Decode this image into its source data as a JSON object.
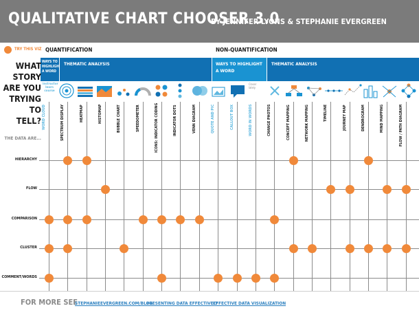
{
  "header": {
    "title": "QUALITATIVE CHART CHOOSER 3.0",
    "authors": "BY JENNIFER LYONS & STEPHANIE EVERGREEN"
  },
  "legend": {
    "try_this": "TRY THIS VIZ"
  },
  "sections": {
    "quantification": "QUANTIFICATION",
    "non_quantification": "NON-QUANTIFICATION"
  },
  "bands": {
    "ways_q": "WAYS TO HIGHLIGHT A WORD",
    "thematic_q": "THEMATIC ANALYSIS",
    "ways_nq": "WAYS TO HIGHLIGHT A WORD",
    "thematic_nq": "THEMATIC ANALYSIS"
  },
  "sidebar": {
    "story_lines": [
      "WHAT",
      "STORY",
      "ARE YOU",
      "TRYING TO",
      "TELL?"
    ],
    "data_are": "THE DATA ARE..."
  },
  "columns": [
    {
      "label": "WORD CLOUD",
      "style": "light"
    },
    {
      "label": "SPECTRUM DISPLAY",
      "style": "dark"
    },
    {
      "label": "HEATMAP",
      "style": "dark"
    },
    {
      "label": "HISTOMAP",
      "style": "dark"
    },
    {
      "label": "BUBBLE CHART",
      "style": "dark"
    },
    {
      "label": "SPEEDOMETER",
      "style": "dark"
    },
    {
      "label": "ICONS: INDICATOR CODING",
      "style": "dark"
    },
    {
      "label": "INDICATOR DOTS",
      "style": "dark"
    },
    {
      "label": "VENN DIAGRAM",
      "style": "dark"
    },
    {
      "label": "QUOTE AND PIC",
      "style": "light"
    },
    {
      "label": "CALLOUT BOX",
      "style": "light"
    },
    {
      "label": "WORD IN WORDS",
      "style": "light"
    },
    {
      "label": "CHANGE PHOTOS",
      "style": "dark"
    },
    {
      "label": "CONCEPT MAPPING",
      "style": "dark"
    },
    {
      "label": "NETWORK MAPPING",
      "style": "dark"
    },
    {
      "label": "TIMELINE",
      "style": "dark"
    },
    {
      "label": "JOURNEY MAP",
      "style": "dark"
    },
    {
      "label": "DENDROGRAM",
      "style": "dark"
    },
    {
      "label": "MIND MAPPING",
      "style": "dark"
    },
    {
      "label": "FLOW / PATH DIAGRAM",
      "style": "dark"
    }
  ],
  "rows": [
    {
      "label": "HIERARCHY",
      "dots": [
        1,
        2,
        13,
        17
      ]
    },
    {
      "label": "FLOW",
      "dots": [
        3,
        15,
        16,
        18,
        19
      ]
    },
    {
      "label": "COMPARISON",
      "dots": [
        0,
        1,
        2,
        5,
        6,
        7,
        8,
        12
      ]
    },
    {
      "label": "CLUSTER",
      "dots": [
        0,
        1,
        4,
        13,
        14,
        16,
        17,
        18,
        19
      ]
    },
    {
      "label": "COMMENT/WORDS",
      "dots": [
        0,
        6,
        9,
        10,
        11,
        12
      ]
    }
  ],
  "icon_text": {
    "icon0": "instructor learn course",
    "icon11": "Closer lately"
  },
  "footer": {
    "heading": "FOR MORE SEE",
    "links": [
      "STEPHANIEEVERGREEN.COM/BLOG",
      "PRESENTING DATA EFFECTIVELY",
      "EFFECTIVE DATA VISUALIZATION"
    ]
  },
  "colors": {
    "accent": "#f0893a",
    "band_dark": "#1170b3",
    "band_light": "#1a93d2",
    "light_label": "#5fb8e0"
  }
}
